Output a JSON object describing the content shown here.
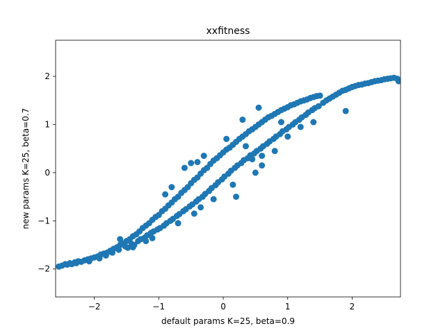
{
  "chart_data": {
    "type": "scatter",
    "title": "xxfitness",
    "xlabel": "default params K=25, beta=0.9",
    "ylabel": "new params K=25, beta=0.7",
    "xlim": [
      -2.6,
      2.75
    ],
    "ylim": [
      -2.58,
      2.75
    ],
    "xticks": [
      -2,
      -1,
      0,
      1,
      2
    ],
    "yticks": [
      -2,
      -1,
      0,
      1,
      2
    ],
    "xtick_labels": [
      "−2",
      "−1",
      "0",
      "1",
      "2"
    ],
    "ytick_labels": [
      "−2",
      "−1",
      "0",
      "1",
      "2"
    ],
    "grid": false,
    "marker_color": "#1f77b4",
    "points": [
      [
        -2.55,
        -1.95
      ],
      [
        -2.5,
        -1.93
      ],
      [
        -2.45,
        -1.9
      ],
      [
        -2.42,
        -1.91
      ],
      [
        -2.38,
        -1.88
      ],
      [
        -2.35,
        -1.9
      ],
      [
        -2.3,
        -1.86
      ],
      [
        -2.28,
        -1.88
      ],
      [
        -2.25,
        -1.84
      ],
      [
        -2.2,
        -1.85
      ],
      [
        -2.15,
        -1.82
      ],
      [
        -2.1,
        -1.8
      ],
      [
        -2.08,
        -1.84
      ],
      [
        -2.05,
        -1.78
      ],
      [
        -2.0,
        -1.76
      ],
      [
        -1.95,
        -1.74
      ],
      [
        -1.92,
        -1.78
      ],
      [
        -1.9,
        -1.7
      ],
      [
        -1.85,
        -1.68
      ],
      [
        -1.82,
        -1.72
      ],
      [
        -1.8,
        -1.66
      ],
      [
        -1.75,
        -1.62
      ],
      [
        -1.72,
        -1.66
      ],
      [
        -1.7,
        -1.58
      ],
      [
        -1.65,
        -1.55
      ],
      [
        -1.62,
        -1.6
      ],
      [
        -1.6,
        -1.5
      ],
      [
        -1.55,
        -1.47
      ],
      [
        -1.52,
        -1.53
      ],
      [
        -1.5,
        -1.42
      ],
      [
        -1.48,
        -1.56
      ],
      [
        -1.45,
        -1.38
      ],
      [
        -1.42,
        -1.48
      ],
      [
        -1.4,
        -1.32
      ],
      [
        -1.38,
        -1.5
      ],
      [
        -1.35,
        -1.28
      ],
      [
        -1.32,
        -1.42
      ],
      [
        -1.3,
        -1.22
      ],
      [
        -1.28,
        -1.38
      ],
      [
        -1.25,
        -1.15
      ],
      [
        -1.22,
        -1.35
      ],
      [
        -1.2,
        -1.1
      ],
      [
        -1.18,
        -1.3
      ],
      [
        -1.15,
        -1.05
      ],
      [
        -1.12,
        -1.25
      ],
      [
        -1.1,
        -0.98
      ],
      [
        -1.08,
        -1.22
      ],
      [
        -1.05,
        -0.92
      ],
      [
        -1.02,
        -1.18
      ],
      [
        -1.0,
        -0.88
      ],
      [
        -0.98,
        -1.15
      ],
      [
        -0.95,
        -0.8
      ],
      [
        -0.92,
        -1.1
      ],
      [
        -0.9,
        -0.75
      ],
      [
        -0.88,
        -1.05
      ],
      [
        -0.85,
        -0.68
      ],
      [
        -0.82,
        -1.0
      ],
      [
        -0.8,
        -0.62
      ],
      [
        -0.78,
        -0.96
      ],
      [
        -0.75,
        -0.55
      ],
      [
        -0.72,
        -0.9
      ],
      [
        -0.7,
        -0.5
      ],
      [
        -0.68,
        -0.86
      ],
      [
        -0.65,
        -0.42
      ],
      [
        -0.62,
        -0.8
      ],
      [
        -0.6,
        -0.36
      ],
      [
        -0.58,
        -0.76
      ],
      [
        -0.55,
        -0.3
      ],
      [
        -0.52,
        -0.7
      ],
      [
        -0.5,
        -0.22
      ],
      [
        -0.48,
        -0.66
      ],
      [
        -0.45,
        -0.15
      ],
      [
        -0.42,
        -0.6
      ],
      [
        -0.4,
        -0.1
      ],
      [
        -0.38,
        -0.55
      ],
      [
        -0.35,
        -0.02
      ],
      [
        -0.32,
        -0.5
      ],
      [
        -0.3,
        0.05
      ],
      [
        -0.28,
        -0.44
      ],
      [
        -0.25,
        0.1
      ],
      [
        -0.22,
        -0.38
      ],
      [
        -0.2,
        0.18
      ],
      [
        -0.18,
        -0.32
      ],
      [
        -0.15,
        0.25
      ],
      [
        -0.12,
        -0.26
      ],
      [
        -0.1,
        0.3
      ],
      [
        -0.08,
        -0.2
      ],
      [
        -0.05,
        0.36
      ],
      [
        -0.02,
        -0.14
      ],
      [
        0.0,
        0.42
      ],
      [
        0.02,
        -0.08
      ],
      [
        0.05,
        0.48
      ],
      [
        0.08,
        -0.02
      ],
      [
        0.1,
        0.52
      ],
      [
        0.12,
        0.04
      ],
      [
        0.15,
        0.58
      ],
      [
        0.18,
        0.1
      ],
      [
        0.2,
        0.64
      ],
      [
        0.22,
        0.15
      ],
      [
        0.25,
        0.7
      ],
      [
        0.28,
        0.2
      ],
      [
        0.3,
        0.75
      ],
      [
        0.32,
        0.26
      ],
      [
        0.35,
        0.8
      ],
      [
        0.38,
        0.3
      ],
      [
        0.4,
        0.86
      ],
      [
        0.42,
        0.36
      ],
      [
        0.45,
        0.9
      ],
      [
        0.48,
        0.4
      ],
      [
        0.5,
        0.95
      ],
      [
        0.52,
        0.45
      ],
      [
        0.55,
        1.0
      ],
      [
        0.58,
        0.5
      ],
      [
        0.6,
        1.05
      ],
      [
        0.62,
        0.55
      ],
      [
        0.65,
        1.1
      ],
      [
        0.68,
        0.6
      ],
      [
        0.7,
        1.15
      ],
      [
        0.72,
        0.65
      ],
      [
        0.75,
        1.18
      ],
      [
        0.78,
        0.7
      ],
      [
        0.8,
        1.22
      ],
      [
        0.82,
        0.75
      ],
      [
        0.85,
        1.26
      ],
      [
        0.88,
        0.8
      ],
      [
        0.9,
        1.3
      ],
      [
        0.92,
        0.86
      ],
      [
        0.95,
        1.33
      ],
      [
        0.98,
        0.9
      ],
      [
        1.0,
        1.36
      ],
      [
        1.02,
        0.95
      ],
      [
        1.05,
        1.4
      ],
      [
        1.08,
        1.0
      ],
      [
        1.1,
        1.42
      ],
      [
        1.12,
        1.05
      ],
      [
        1.15,
        1.45
      ],
      [
        1.18,
        1.1
      ],
      [
        1.2,
        1.48
      ],
      [
        1.22,
        1.15
      ],
      [
        1.25,
        1.5
      ],
      [
        1.28,
        1.2
      ],
      [
        1.3,
        1.52
      ],
      [
        1.32,
        1.25
      ],
      [
        1.35,
        1.55
      ],
      [
        1.38,
        1.3
      ],
      [
        1.4,
        1.57
      ],
      [
        1.42,
        1.34
      ],
      [
        1.45,
        1.59
      ],
      [
        1.48,
        1.38
      ],
      [
        1.5,
        1.6
      ],
      [
        1.55,
        1.45
      ],
      [
        1.6,
        1.5
      ],
      [
        1.65,
        1.54
      ],
      [
        1.7,
        1.58
      ],
      [
        1.75,
        1.62
      ],
      [
        1.8,
        1.66
      ],
      [
        1.85,
        1.7
      ],
      [
        1.9,
        1.72
      ],
      [
        1.95,
        1.75
      ],
      [
        2.0,
        1.78
      ],
      [
        2.05,
        1.8
      ],
      [
        2.1,
        1.82
      ],
      [
        2.15,
        1.83
      ],
      [
        2.2,
        1.85
      ],
      [
        2.25,
        1.86
      ],
      [
        2.3,
        1.88
      ],
      [
        2.35,
        1.9
      ],
      [
        2.4,
        1.91
      ],
      [
        2.45,
        1.92
      ],
      [
        2.5,
        1.94
      ],
      [
        2.55,
        1.95
      ],
      [
        2.6,
        1.96
      ],
      [
        2.65,
        1.97
      ],
      [
        2.7,
        1.95
      ],
      [
        2.72,
        1.9
      ],
      [
        -1.6,
        -1.38
      ],
      [
        -1.4,
        -1.55
      ],
      [
        -1.2,
        -1.42
      ],
      [
        -0.5,
        0.2
      ],
      [
        -0.6,
        0.1
      ],
      [
        -0.4,
        0.22
      ],
      [
        0.5,
        0.0
      ],
      [
        0.6,
        0.15
      ],
      [
        0.55,
        1.35
      ],
      [
        0.3,
        1.1
      ],
      [
        1.4,
        1.05
      ],
      [
        1.2,
        0.95
      ],
      [
        1.9,
        1.28
      ],
      [
        -1.1,
        -1.36
      ],
      [
        -0.35,
        -0.72
      ],
      [
        0.2,
        -0.5
      ],
      [
        0.45,
        0.28
      ],
      [
        -0.15,
        -0.55
      ],
      [
        0.8,
        0.45
      ],
      [
        -0.9,
        -0.45
      ],
      [
        -0.8,
        -0.3
      ],
      [
        -0.3,
        0.35
      ],
      [
        0.05,
        0.7
      ],
      [
        0.35,
        0.55
      ],
      [
        0.9,
        1.05
      ],
      [
        -0.7,
        -1.05
      ],
      [
        -0.45,
        -0.85
      ],
      [
        0.15,
        -0.25
      ],
      [
        0.6,
        0.35
      ],
      [
        1.0,
        0.75
      ]
    ]
  }
}
